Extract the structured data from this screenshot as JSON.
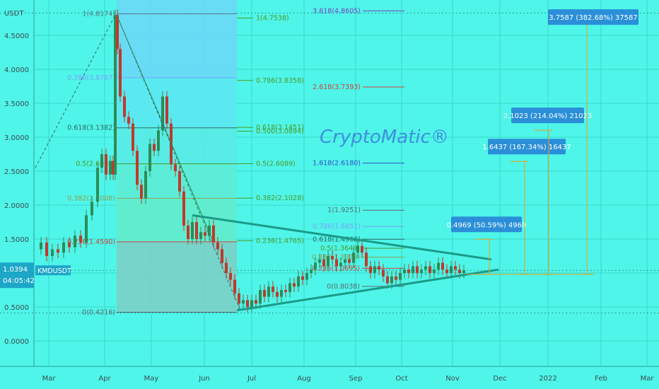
{
  "chart_data": {
    "type": "candlestick",
    "symbol": "KMDUSDT",
    "currency": "USDT",
    "watermark": "CryptoMatic®",
    "current_price": "1.0394",
    "countdown": "04:05:42",
    "y_ticks": [
      "4.5000",
      "4.0000",
      "3.5000",
      "3.0000",
      "2.5000",
      "2.0000",
      "1.5000",
      "0.5000",
      "0.0000"
    ],
    "x_ticks": [
      "Mar",
      "Apr",
      "May",
      "Jun",
      "Jul",
      "Aug",
      "Sep",
      "Oct",
      "Nov",
      "Dec",
      "2022",
      "Feb",
      "Mar"
    ],
    "fib_left": [
      {
        "label": "1(4.8174)",
        "value": 4.8174,
        "color": "#5a7a8a"
      },
      {
        "label": "0.786(3.8767)",
        "value": 3.8767,
        "color": "#7aa0ff"
      },
      {
        "label": "0.618(3.1382)",
        "value": 3.1382,
        "color": "#2a6a60"
      },
      {
        "label": "0.5(2.6085)",
        "value": 2.6085,
        "color": "#4c9a2a"
      },
      {
        "label": "0.382(2.1008)",
        "value": 2.1008,
        "color": "#8aa050"
      },
      {
        "label": "0.236(1.4590)",
        "value": 1.459,
        "color": "#d04040"
      },
      {
        "label": "0(0.4216)",
        "value": 0.4216,
        "color": "#5a6a70"
      }
    ],
    "fib_mid": [
      {
        "label": "1(4.7538)",
        "value": 4.7538,
        "color": "#4c9a2a"
      },
      {
        "label": "0.786(3.8358)",
        "value": 3.8358,
        "color": "#4c9a2a"
      },
      {
        "label": "0.618(3.1451)",
        "value": 3.1451,
        "color": "#4c9a2a"
      },
      {
        "label": "0.500(3.0894)",
        "value": 3.0894,
        "color": "#4c9a2a"
      },
      {
        "label": "0.5(2.6089)",
        "value": 2.6089,
        "color": "#4c9a2a"
      },
      {
        "label": "0.382(2.1028)",
        "value": 2.1028,
        "color": "#4c9a2a"
      },
      {
        "label": "0.236(1.4765)",
        "value": 1.4765,
        "color": "#4c9a2a"
      }
    ],
    "fib_right": [
      {
        "label": "3.618(4.8605)",
        "value": 4.8605,
        "color": "#7a40c0"
      },
      {
        "label": "2.618(3.7393)",
        "value": 3.7393,
        "color": "#d04040"
      },
      {
        "label": "1.618(2.6180)",
        "value": 2.618,
        "color": "#3050d0"
      },
      {
        "label": "1(1.9251)",
        "value": 1.9251,
        "color": "#5a6a70"
      },
      {
        "label": "0.786(1.6851)",
        "value": 1.6851,
        "color": "#7aa0ff"
      },
      {
        "label": "0.618(1.4968)",
        "value": 1.4968,
        "color": "#2a6a60"
      },
      {
        "label": "0.5(1.3649)",
        "value": 1.3649,
        "color": "#4c9a2a"
      },
      {
        "label": "0.382(1.2329)",
        "value": 1.2329,
        "color": "#8aa050"
      },
      {
        "label": "0.236(1.0695)",
        "value": 1.0695,
        "color": "#d04040"
      },
      {
        "label": "0(0.8038)",
        "value": 0.8038,
        "color": "#5a6a70"
      }
    ],
    "targets": [
      {
        "label": "0.4969 (50.59%) 4969",
        "value": 1.4969
      },
      {
        "label": "1.6437 (167.34%) 16437",
        "value": 2.6437
      },
      {
        "label": "2.1023 (214.04%) 21023",
        "value": 3.1023
      },
      {
        "label": "3.7587 (382.68%) 37587",
        "value": 4.7587
      }
    ],
    "ylim": [
      -0.4,
      5.0
    ],
    "grid": true
  }
}
